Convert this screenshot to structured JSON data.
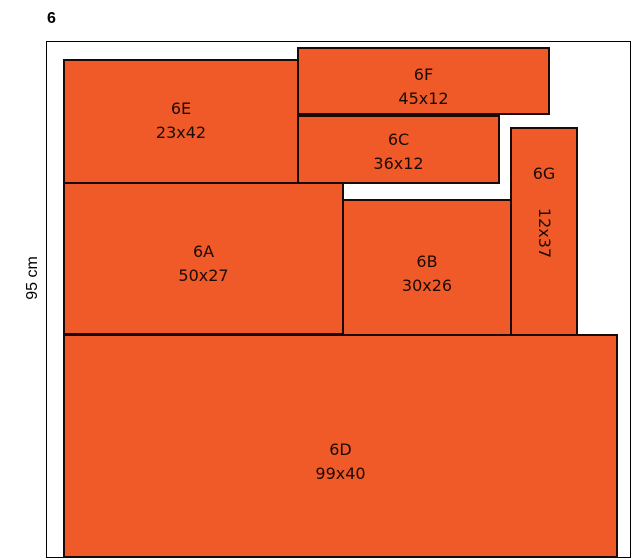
{
  "diagram": {
    "title": "6",
    "height_label": "95 cm",
    "fill_color": "#f05a28",
    "pieces": [
      {
        "id": "6E",
        "size": "23x42"
      },
      {
        "id": "6F",
        "size": "45x12"
      },
      {
        "id": "6C",
        "size": "36x12"
      },
      {
        "id": "6G",
        "size": "12x37"
      },
      {
        "id": "6A",
        "size": "50x27"
      },
      {
        "id": "6B",
        "size": "30x26"
      },
      {
        "id": "6D",
        "size": "99x40"
      }
    ]
  }
}
